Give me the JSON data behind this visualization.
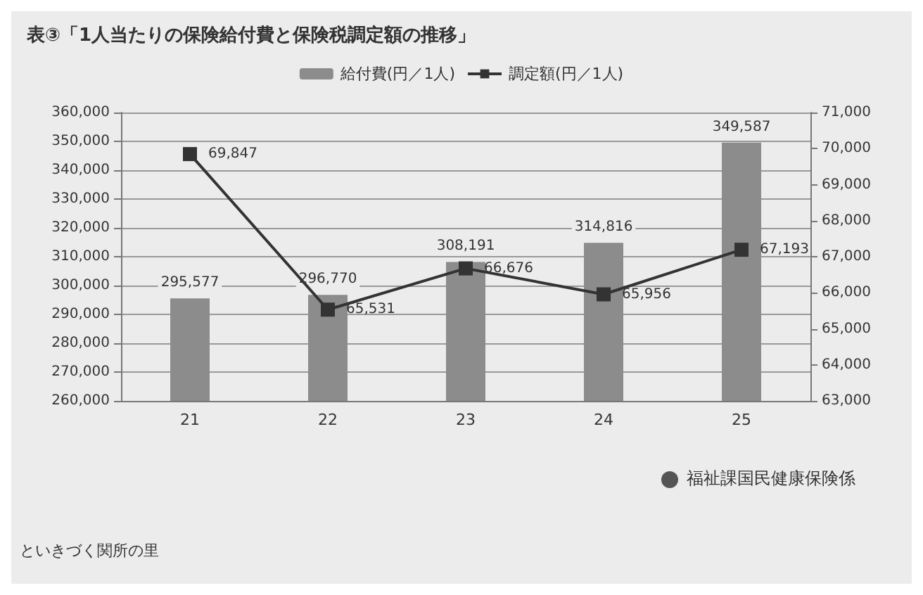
{
  "chart_data": {
    "type": "bar",
    "title": "表③「1人当たりの保険給付費と保険税調定額の推移」",
    "categories": [
      "21",
      "22",
      "23",
      "24",
      "25"
    ],
    "series": [
      {
        "name": "給付費(円／1人)",
        "color": "#8c8c8c",
        "values": [
          295577,
          296770,
          308191,
          314816,
          349587
        ],
        "value_labels": [
          "295,577",
          "296,770",
          "308,191",
          "314,816",
          "349,587"
        ]
      },
      {
        "name": "調定額(円／1人)",
        "type": "line",
        "axis": "y2",
        "color": "#333333",
        "marker": "square",
        "values": [
          69847,
          65531,
          66676,
          65956,
          67193
        ],
        "value_labels": [
          "69,847",
          "65,531",
          "66,676",
          "65,956",
          "67,193"
        ]
      }
    ],
    "ylim": [
      260000,
      360000
    ],
    "yticks": [
      {
        "value": 260000,
        "label": "260,000"
      },
      {
        "value": 270000,
        "label": "270,000"
      },
      {
        "value": 280000,
        "label": "280,000"
      },
      {
        "value": 290000,
        "label": "290,000"
      },
      {
        "value": 300000,
        "label": "300,000"
      },
      {
        "value": 310000,
        "label": "310,000"
      },
      {
        "value": 320000,
        "label": "320,000"
      },
      {
        "value": 330000,
        "label": "330,000"
      },
      {
        "value": 340000,
        "label": "340,000"
      },
      {
        "value": 350000,
        "label": "350,000"
      },
      {
        "value": 360000,
        "label": "360,000"
      }
    ],
    "y2lim": [
      63000,
      71000
    ],
    "y2ticks": [
      {
        "value": 63000,
        "label": "63,000"
      },
      {
        "value": 64000,
        "label": "64,000"
      },
      {
        "value": 65000,
        "label": "65,000"
      },
      {
        "value": 66000,
        "label": "66,000"
      },
      {
        "value": 67000,
        "label": "67,000"
      },
      {
        "value": 68000,
        "label": "68,000"
      },
      {
        "value": 69000,
        "label": "69,000"
      },
      {
        "value": 70000,
        "label": "70,000"
      },
      {
        "value": 71000,
        "label": "71,000"
      }
    ],
    "grid": "y",
    "legend": "top",
    "annotations": [
      "福祉課国民健康保険係",
      "といきづく関所の里"
    ]
  }
}
